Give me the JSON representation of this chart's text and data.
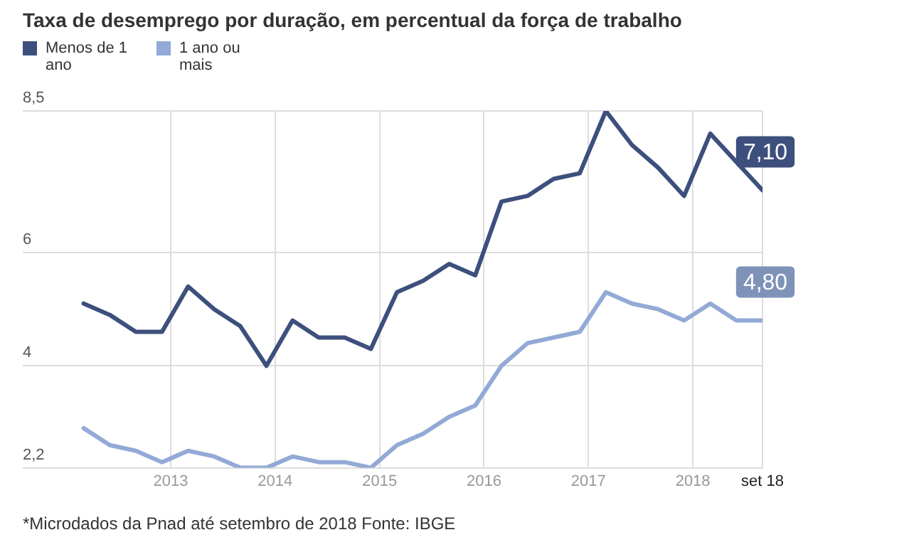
{
  "chart_data": {
    "type": "line",
    "title": "Taxa de desemprego por duração, em percentual da força de trabalho",
    "x": [
      "2012-03",
      "2012-06",
      "2012-09",
      "2012-12",
      "2013-03",
      "2013-06",
      "2013-09",
      "2013-12",
      "2014-03",
      "2014-06",
      "2014-09",
      "2014-12",
      "2015-03",
      "2015-06",
      "2015-09",
      "2015-12",
      "2016-03",
      "2016-06",
      "2016-09",
      "2016-12",
      "2017-03",
      "2017-06",
      "2017-09",
      "2017-12",
      "2018-03",
      "2018-06",
      "2018-09"
    ],
    "series": [
      {
        "name": "Menos de 1 ano",
        "color": "#3d4f7c",
        "values": [
          5.1,
          4.9,
          4.6,
          4.6,
          5.4,
          5.0,
          4.7,
          4.0,
          4.8,
          4.5,
          4.5,
          4.3,
          5.3,
          5.5,
          5.8,
          5.6,
          6.9,
          7.0,
          7.3,
          7.4,
          8.5,
          7.9,
          7.5,
          7.0,
          8.1,
          7.6,
          7.1
        ],
        "value_labels": [
          null,
          null,
          null,
          null,
          null,
          null,
          null,
          null,
          null,
          null,
          null,
          null,
          null,
          null,
          null,
          null,
          null,
          null,
          null,
          null,
          null,
          null,
          null,
          null,
          null,
          null,
          "7,10"
        ]
      },
      {
        "name": "1 ano ou mais",
        "color": "#93a9d6",
        "values": [
          2.9,
          2.6,
          2.5,
          2.3,
          2.5,
          2.4,
          2.2,
          2.2,
          2.4,
          2.3,
          2.3,
          2.2,
          2.6,
          2.8,
          3.1,
          3.3,
          4.0,
          4.4,
          4.5,
          4.6,
          5.3,
          5.1,
          5.0,
          4.8,
          5.1,
          4.8,
          4.8
        ],
        "value_labels": [
          null,
          null,
          null,
          null,
          null,
          null,
          null,
          null,
          null,
          null,
          null,
          null,
          null,
          null,
          null,
          null,
          null,
          null,
          null,
          null,
          null,
          null,
          null,
          null,
          null,
          null,
          "4,80"
        ]
      }
    ],
    "xlim": [
      "2011-08",
      "2018-09"
    ],
    "xticks": [
      "2013",
      "2014",
      "2015",
      "2016",
      "2017",
      "2018",
      {
        "value": "2018-09",
        "label": "set 18"
      }
    ],
    "ylim": [
      2.2,
      8.5
    ],
    "yticks": [
      {
        "value": 2.2,
        "label": "2,2"
      },
      4,
      6,
      {
        "value": 8.5,
        "label": "8,5"
      }
    ],
    "grid": true,
    "legend": "top left",
    "marker": "none",
    "line_style": "solid",
    "annotations": [
      "*Microdados da Pnad até setembro de 2018 Fonte: IBGE"
    ]
  }
}
